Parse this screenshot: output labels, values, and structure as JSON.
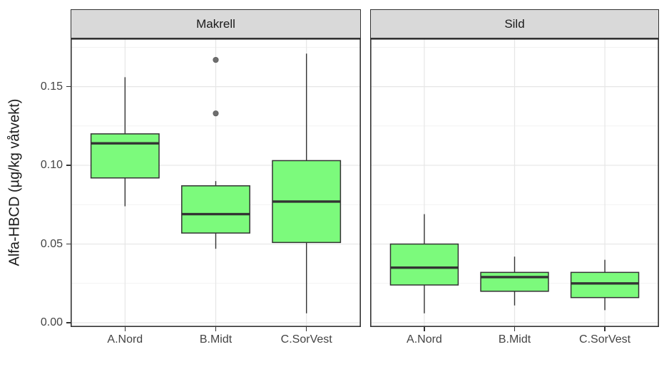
{
  "chart_data": {
    "type": "boxplot",
    "title": "",
    "xlabel": "",
    "ylabel": "Alfa-HBCD (µg/kg våtvekt)",
    "categories": [
      "A.Nord",
      "B.Midt",
      "C.SorVest"
    ],
    "y_ticks": [
      {
        "value": 0.0,
        "label": "0.00"
      },
      {
        "value": 0.05,
        "label": "0.05"
      },
      {
        "value": 0.1,
        "label": "0.10"
      },
      {
        "value": 0.15,
        "label": "0.15"
      }
    ],
    "y_minor_ticks": [
      0.025,
      0.075,
      0.125,
      0.175
    ],
    "ylim": [
      -0.003,
      0.181
    ],
    "grid": true,
    "legend": "none",
    "facets": [
      {
        "label": "Makrell",
        "boxes": [
          {
            "category": "A.Nord",
            "min": 0.074,
            "q1": 0.092,
            "median": 0.114,
            "q3": 0.12,
            "max": 0.156,
            "outliers": []
          },
          {
            "category": "B.Midt",
            "min": 0.047,
            "q1": 0.057,
            "median": 0.069,
            "q3": 0.087,
            "max": 0.09,
            "outliers": [
              0.167,
              0.133
            ]
          },
          {
            "category": "C.SorVest",
            "min": 0.006,
            "q1": 0.051,
            "median": 0.077,
            "q3": 0.103,
            "max": 0.171,
            "outliers": []
          }
        ]
      },
      {
        "label": "Sild",
        "boxes": [
          {
            "category": "A.Nord",
            "min": 0.006,
            "q1": 0.024,
            "median": 0.035,
            "q3": 0.05,
            "max": 0.069,
            "outliers": []
          },
          {
            "category": "B.Midt",
            "min": 0.011,
            "q1": 0.02,
            "median": 0.029,
            "q3": 0.032,
            "max": 0.042,
            "outliers": []
          },
          {
            "category": "C.SorVest",
            "min": 0.008,
            "q1": 0.016,
            "median": 0.025,
            "q3": 0.032,
            "max": 0.04,
            "outliers": []
          }
        ]
      }
    ],
    "colors": {
      "box_fill": "#7CFA7C",
      "box_stroke": "#333333",
      "median": "#333333",
      "outlier": "#6E6E6E",
      "strip_bg": "#D9D9D9",
      "strip_border": "#333333",
      "panel_border": "#333333",
      "grid_major": "#E6E6E6",
      "grid_minor": "#F1F1F1",
      "axis_text": "#444444",
      "title_text": "#1A1A1A"
    }
  }
}
